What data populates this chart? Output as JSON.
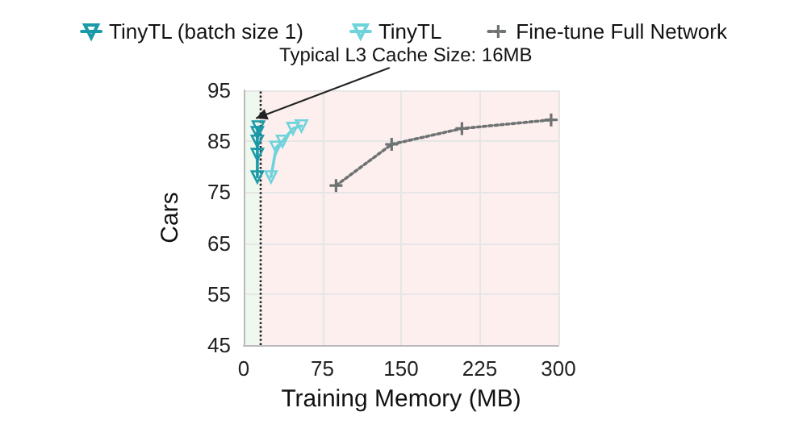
{
  "chart_data": {
    "type": "line",
    "xlabel": "Training Memory (MB)",
    "ylabel": "Cars",
    "xlim": [
      0,
      300
    ],
    "xticks": [
      0,
      75,
      150,
      225,
      300
    ],
    "ylim": [
      45,
      95
    ],
    "yticks": [
      45,
      55,
      65,
      75,
      85,
      95
    ],
    "grid": true,
    "legend": "top",
    "series": [
      {
        "name": "TinyTL (batch size 1)",
        "color": "#1a9aa8",
        "marker": "triangle",
        "line_style": "solid",
        "x": [
          13,
          13,
          13,
          13,
          14
        ],
        "values": [
          78,
          82.4,
          85,
          86.7,
          87.8
        ]
      },
      {
        "name": "TinyTL",
        "color": "#6fd3dc",
        "marker": "triangle",
        "line_style": "solid",
        "x": [
          26,
          31,
          37,
          47,
          55
        ],
        "values": [
          78,
          83.8,
          85,
          87.5,
          88
        ]
      },
      {
        "name": "Fine-tune Full Network",
        "color": "#6e7272",
        "marker": "cross",
        "line_style": "dotted",
        "x": [
          88,
          141,
          208,
          293
        ],
        "values": [
          76.3,
          84.4,
          87.5,
          89.2
        ]
      }
    ],
    "ref_lines": [
      {
        "axis": "x",
        "value": 16,
        "color": "#222222",
        "line_style": "dotted"
      }
    ],
    "bands": [
      {
        "axis": "x",
        "from": 0,
        "to": 16,
        "color": "#eef8ee"
      },
      {
        "axis": "x",
        "from": 16,
        "to": 300,
        "color": "#fcefee"
      }
    ],
    "annotations": [
      {
        "text": "Typical L3 Cache Size: 16MB",
        "x": 16,
        "y": 89.5
      }
    ]
  }
}
